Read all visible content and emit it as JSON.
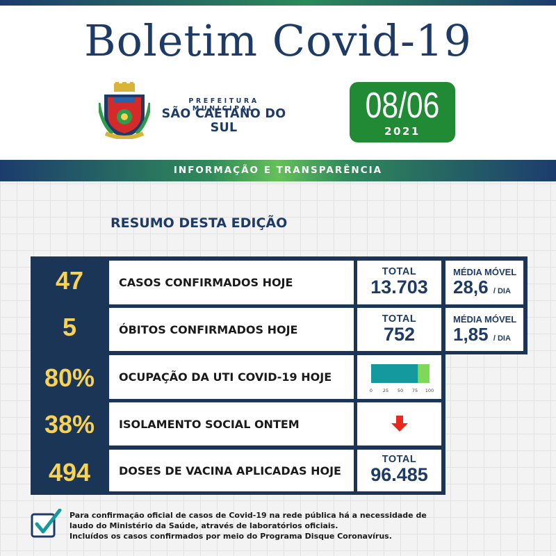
{
  "header": {
    "title": "Boletim Covid-19",
    "crest_icon": "city-coat-of-arms-icon",
    "prefeitura_prefix": "PREFEITURA MUNICIPAL",
    "prefeitura_name": "SÃO CAETANO DO SUL",
    "date": "08/06",
    "year": "2021",
    "banner": "INFORMAÇÃO E TRANSPARÊNCIA"
  },
  "summary": {
    "heading": "RESUMO DESTA EDIÇÃO",
    "rows": [
      {
        "value": "47",
        "label": "CASOS CONFIRMADOS HOJE",
        "total_label": "TOTAL",
        "total_value": "13.703",
        "media_label": "MÉDIA MÓVEL",
        "media_value": "28,6",
        "media_unit": "/ DIA"
      },
      {
        "value": "5",
        "label": "ÓBITOS CONFIRMADOS HOJE",
        "total_label": "TOTAL",
        "total_value": "752",
        "media_label": "MÉDIA MÓVEL",
        "media_value": "1,85",
        "media_unit": "/ DIA"
      },
      {
        "value": "80%",
        "label": "OCUPAÇÃO DA UTI COVID-19 HOJE",
        "occupancy_percent": 80,
        "occupancy_ticks": [
          "0",
          "25",
          "50",
          "75",
          "100"
        ]
      },
      {
        "value": "38%",
        "label": "ISOLAMENTO SOCIAL ONTEM",
        "trend_icon": "red-down-arrow-icon"
      },
      {
        "value": "494",
        "label": "DOSES DE VACINA APLICADAS HOJE",
        "total_label": "TOTAL",
        "total_value": "96.485"
      }
    ]
  },
  "footnote": {
    "icon": "checkbox-check-icon",
    "line1": "Para confirmação oficial de casos de Covid-19 na rede pública há a necessidade de",
    "line2": "laudo do Ministério da Saúde, através de laboratórios oficiais.",
    "line3": "Incluídos os casos confirmados por meio do Programa Disque Coronavírus."
  },
  "colors": {
    "navy": "#1d3b66",
    "table_dark": "#1b3557",
    "number_yellow": "#f7d254",
    "date_green": "#218a35",
    "bar_teal": "#14999e",
    "bar_lightgreen": "#7ed957",
    "arrow_red": "#e8291c"
  }
}
